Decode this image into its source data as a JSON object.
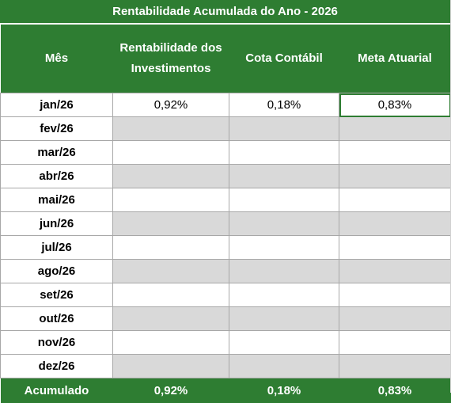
{
  "title": "Rentabilidade Acumulada do Ano -  2026",
  "headers": {
    "month": "Mês",
    "rentabilidade_line1": "Rentabilidade dos",
    "rentabilidade_line2": "Investimentos",
    "cota": "Cota Contábil",
    "meta": "Meta Atuarial"
  },
  "rows": [
    {
      "month": "jan/26",
      "rentabilidade": "0,92%",
      "cota": "0,18%",
      "meta": "0,83%"
    },
    {
      "month": "fev/26",
      "rentabilidade": "",
      "cota": "",
      "meta": ""
    },
    {
      "month": "mar/26",
      "rentabilidade": "",
      "cota": "",
      "meta": ""
    },
    {
      "month": "abr/26",
      "rentabilidade": "",
      "cota": "",
      "meta": ""
    },
    {
      "month": "mai/26",
      "rentabilidade": "",
      "cota": "",
      "meta": ""
    },
    {
      "month": "jun/26",
      "rentabilidade": "",
      "cota": "",
      "meta": ""
    },
    {
      "month": "jul/26",
      "rentabilidade": "",
      "cota": "",
      "meta": ""
    },
    {
      "month": "ago/26",
      "rentabilidade": "",
      "cota": "",
      "meta": ""
    },
    {
      "month": "set/26",
      "rentabilidade": "",
      "cota": "",
      "meta": ""
    },
    {
      "month": "out/26",
      "rentabilidade": "",
      "cota": "",
      "meta": ""
    },
    {
      "month": "nov/26",
      "rentabilidade": "",
      "cota": "",
      "meta": ""
    },
    {
      "month": "dez/26",
      "rentabilidade": "",
      "cota": "",
      "meta": ""
    }
  ],
  "total": {
    "label": "Acumulado",
    "rentabilidade": "0,92%",
    "cota": "0,18%",
    "meta": "0,83%"
  },
  "colors": {
    "header_green": "#2e7d32",
    "alt_row_gray": "#d9d9d9",
    "grid_line": "#a8a8a8"
  },
  "selected_cell": {
    "row": "jan/26",
    "column": "meta"
  }
}
